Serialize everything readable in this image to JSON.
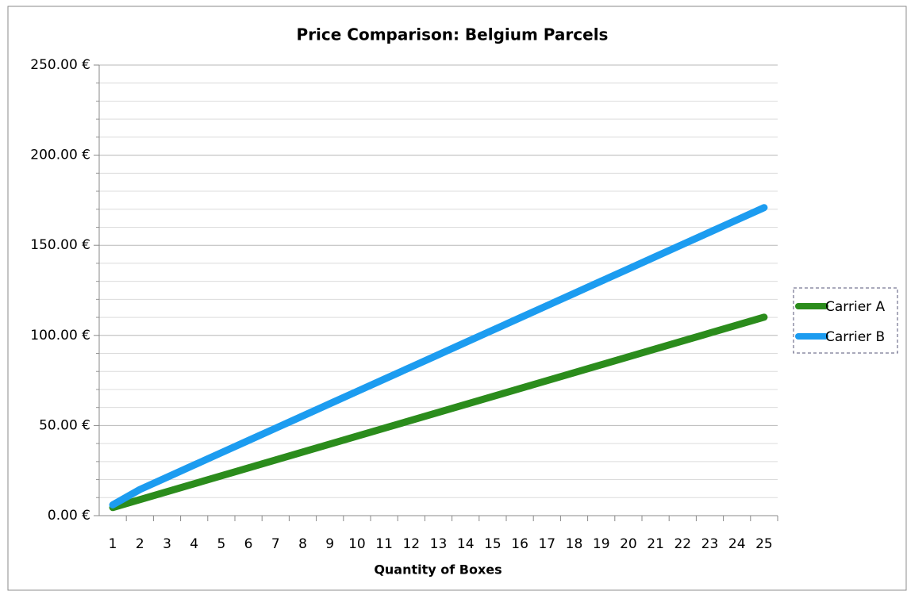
{
  "chart_data": {
    "type": "line",
    "title": "Price Comparison: Belgium Parcels",
    "x_label": "Quantity of Boxes",
    "categories": [
      1,
      2,
      3,
      4,
      5,
      6,
      7,
      8,
      9,
      10,
      11,
      12,
      13,
      14,
      15,
      16,
      17,
      18,
      19,
      20,
      21,
      22,
      23,
      24,
      25
    ],
    "series": [
      {
        "name": "Carrier A",
        "color": "#2b8c1c",
        "values": [
          4.5,
          8.9,
          13.3,
          17.7,
          22.1,
          26.5,
          30.9,
          35.3,
          39.7,
          44.1,
          48.5,
          52.9,
          57.3,
          61.7,
          66.1,
          70.5,
          74.9,
          79.3,
          83.7,
          88.1,
          92.5,
          96.9,
          101.3,
          105.7,
          110.1
        ]
      },
      {
        "name": "Carrier B",
        "color": "#1c9cf0",
        "values": [
          6,
          14.5,
          21.3,
          28.1,
          34.9,
          41.7,
          48.5,
          55.3,
          62.1,
          68.9,
          75.7,
          82.5,
          89.3,
          96.1,
          102.9,
          109.7,
          116.5,
          123.3,
          130.1,
          136.9,
          143.7,
          150.5,
          157.3,
          164.1,
          170.9
        ]
      }
    ],
    "ylim": [
      0,
      250
    ],
    "yticks": [
      {
        "value": 0,
        "label": "0.00 €"
      },
      {
        "value": 50,
        "label": "50.00 €"
      },
      {
        "value": 100,
        "label": "100.00 €"
      },
      {
        "value": 150,
        "label": "150.00 €"
      },
      {
        "value": 200,
        "label": "200.00 €"
      },
      {
        "value": 250,
        "label": "250.00 €"
      }
    ],
    "y_minor_ticks": [
      10,
      20,
      30,
      40,
      60,
      70,
      80,
      90,
      110,
      120,
      130,
      140,
      160,
      170,
      180,
      190,
      210,
      220,
      230,
      240
    ],
    "grid": true,
    "legend": "right"
  }
}
